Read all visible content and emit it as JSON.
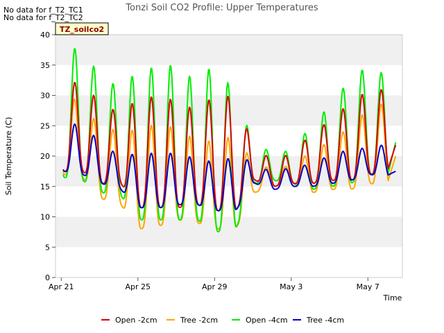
{
  "notes": [
    "No data for f_T2_TC1",
    "No data for f_T2_TC2"
  ],
  "badge": "TZ_soilco2",
  "chart_data": {
    "type": "line",
    "title": "Tonzi Soil CO2 Profile: Upper Temperatures",
    "xlabel": "Time",
    "ylabel": "Soil Temperature (C)",
    "ylim": [
      0,
      40
    ],
    "xlim": [
      -0.3,
      17.8
    ],
    "yticks": [
      0,
      5,
      10,
      15,
      20,
      25,
      30,
      35,
      40
    ],
    "xticks": [
      {
        "label": "Apr 21",
        "day": 0
      },
      {
        "label": "Apr 25",
        "day": 4
      },
      {
        "label": "Apr 29",
        "day": 8
      },
      {
        "label": "May 3",
        "day": 12
      },
      {
        "label": "May 7",
        "day": 16
      }
    ],
    "grid": "horizontal alternating bands",
    "legend_position": "bottom",
    "x_units": "days since Apr 21",
    "daily_extremes": {
      "days": [
        0,
        1,
        2,
        3,
        4,
        5,
        6,
        7,
        8,
        9,
        10,
        11,
        12,
        13,
        14,
        15,
        16,
        17
      ],
      "open_2cm_min": [
        17.5,
        17.5,
        15.5,
        15.5,
        11.5,
        11.5,
        11.5,
        12.0,
        11.0,
        11.0,
        16.0,
        15.0,
        15.5,
        15.5,
        16.0,
        16.0,
        17.0,
        17.0
      ],
      "open_2cm_max": [
        31.0,
        33.0,
        28.0,
        27.5,
        29.5,
        30.0,
        29.0,
        27.5,
        30.5,
        29.5,
        21.0,
        19.5,
        20.5,
        24.0,
        26.0,
        29.0,
        31.0,
        31.0
      ],
      "tree_2cm_min": [
        17.0,
        16.5,
        13.0,
        12.0,
        8.0,
        8.5,
        9.5,
        9.0,
        8.0,
        8.0,
        14.0,
        15.0,
        15.5,
        14.0,
        14.5,
        14.5,
        15.5,
        15.0
      ],
      "tree_2cm_max": [
        31.5,
        28.0,
        25.0,
        24.0,
        24.5,
        25.5,
        24.5,
        22.5,
        22.5,
        23.5,
        18.5,
        18.0,
        18.5,
        21.0,
        22.5,
        25.0,
        28.0,
        29.0
      ],
      "open_4cm_min": [
        16.5,
        16.0,
        14.0,
        13.5,
        9.5,
        9.5,
        9.5,
        9.5,
        7.5,
        8.0,
        15.5,
        16.0,
        15.5,
        14.5,
        15.0,
        15.5,
        17.0,
        16.0
      ],
      "open_4cm_max": [
        36.0,
        39.0,
        32.0,
        32.0,
        34.0,
        35.0,
        35.0,
        32.0,
        36.0,
        29.5,
        22.0,
        20.5,
        21.0,
        25.5,
        28.5,
        33.0,
        35.0,
        33.0
      ],
      "tree_4cm_min": [
        17.5,
        17.0,
        15.5,
        14.5,
        11.5,
        11.5,
        12.0,
        12.0,
        11.0,
        11.0,
        15.5,
        14.5,
        15.0,
        15.0,
        15.5,
        16.0,
        17.0,
        16.5
      ],
      "tree_4cm_max": [
        25.0,
        25.5,
        22.0,
        20.0,
        20.5,
        20.5,
        20.5,
        19.5,
        19.0,
        20.0,
        19.0,
        17.0,
        18.5,
        18.5,
        20.5,
        21.0,
        21.5,
        22.0
      ]
    },
    "series": [
      {
        "name": "Open -2cm",
        "key": "open_2cm",
        "color": "#dd0000"
      },
      {
        "name": "Tree -2cm",
        "key": "tree_2cm",
        "color": "#ffa500"
      },
      {
        "name": "Open -4cm",
        "key": "open_4cm",
        "color": "#00ee00"
      },
      {
        "name": "Tree -4cm",
        "key": "tree_4cm",
        "color": "#0000cc"
      }
    ]
  }
}
